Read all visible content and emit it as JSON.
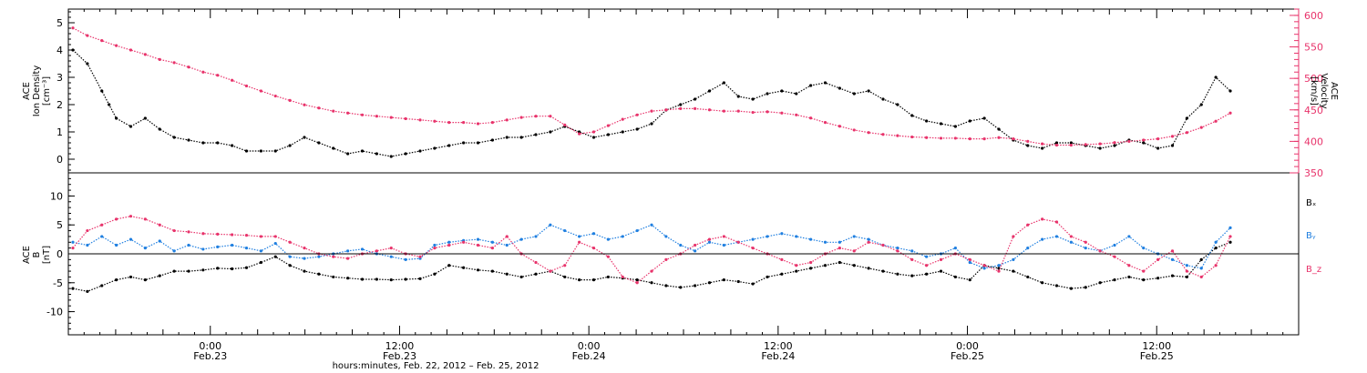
{
  "colors": {
    "black": "#000000",
    "pink": "#e8336b",
    "blue": "#1f7fe0"
  },
  "xlabel": "hours:minutes, Feb. 22, 2012 – Feb. 25, 2012",
  "chart_data": [
    {
      "panel": "density-velocity",
      "type": "scatter",
      "y_title_left": [
        "ACE",
        "Ion Density",
        "[cm⁻³]"
      ],
      "y_title_right": [
        "ACE",
        "Velocity",
        "[km/s]"
      ],
      "ylim": [
        -0.5,
        5.5
      ],
      "ylim_right": [
        350,
        610
      ],
      "y_ticks": [
        "0",
        "1",
        "2",
        "3",
        "4",
        "5"
      ],
      "y_ticks_right": [
        "350",
        "400",
        "450",
        "500",
        "550",
        "600"
      ],
      "series": [
        {
          "name": "",
          "color": "black",
          "x": [
            0.0,
            1.0,
            2.0,
            2.5,
            3.0,
            4.0,
            5.0,
            6.0,
            7.0,
            8.0,
            9.0,
            10.0,
            11.0,
            12.0,
            13.0,
            14.0,
            15.0,
            16.0,
            17.0,
            18.0,
            19.0,
            20.0,
            21.0,
            22.0,
            23.0,
            24.0,
            25.0,
            26.0,
            27.0,
            28.0,
            29.0,
            30.0,
            31.0,
            32.0,
            33.0,
            34.0,
            35.0,
            36.0,
            37.0,
            38.0,
            39.0,
            40.0,
            41.0,
            42.0,
            43.0,
            44.0,
            45.0,
            46.0,
            47.0,
            48.0,
            49.0,
            50.0,
            51.0,
            52.0,
            53.0,
            54.0,
            55.0,
            56.0,
            57.0,
            58.0,
            59.0,
            60.0,
            61.0,
            62.0,
            63.0,
            64.0,
            65.0,
            66.0,
            67.0,
            68.0,
            69.0,
            70.0,
            71.0,
            72.0,
            73.0,
            74.0,
            75.0,
            76.0,
            77.0,
            78.0,
            79.0,
            80.0
          ],
          "y": [
            4.0,
            3.5,
            2.5,
            2.0,
            1.5,
            1.2,
            1.5,
            1.1,
            0.8,
            0.7,
            0.6,
            0.6,
            0.5,
            0.3,
            0.3,
            0.3,
            0.5,
            0.8,
            0.6,
            0.4,
            0.2,
            0.3,
            0.2,
            0.1,
            0.2,
            0.3,
            0.4,
            0.5,
            0.6,
            0.6,
            0.7,
            0.8,
            0.8,
            0.9,
            1.0,
            1.2,
            1.0,
            0.8,
            0.9,
            1.0,
            1.1,
            1.3,
            1.8,
            2.0,
            2.2,
            2.5,
            2.8,
            2.3,
            2.2,
            2.4,
            2.5,
            2.4,
            2.7,
            2.8,
            2.6,
            2.4,
            2.5,
            2.2,
            2.0,
            1.6,
            1.4,
            1.3,
            1.2,
            1.4,
            1.5,
            1.1,
            0.7,
            0.5,
            0.4,
            0.6,
            0.6,
            0.5,
            0.4,
            0.5,
            0.7,
            0.6,
            0.4,
            0.5,
            1.5,
            2.0,
            3.0,
            2.5
          ]
        }
      ],
      "series_right": [
        {
          "name": "",
          "color": "pink",
          "x": [
            0.0,
            1.0,
            2.0,
            3.0,
            4.0,
            5.0,
            6.0,
            7.0,
            8.0,
            9.0,
            10.0,
            11.0,
            12.0,
            13.0,
            14.0,
            15.0,
            16.0,
            17.0,
            18.0,
            19.0,
            20.0,
            21.0,
            22.0,
            23.0,
            24.0,
            25.0,
            26.0,
            27.0,
            28.0,
            29.0,
            30.0,
            31.0,
            32.0,
            33.0,
            34.0,
            35.0,
            36.0,
            37.0,
            38.0,
            39.0,
            40.0,
            41.0,
            42.0,
            43.0,
            44.0,
            45.0,
            46.0,
            47.0,
            48.0,
            49.0,
            50.0,
            51.0,
            52.0,
            53.0,
            54.0,
            55.0,
            56.0,
            57.0,
            58.0,
            59.0,
            60.0,
            61.0,
            62.0,
            63.0,
            64.0,
            65.0,
            66.0,
            67.0,
            68.0,
            69.0,
            70.0,
            71.0,
            72.0,
            73.0,
            74.0,
            75.0,
            76.0,
            77.0,
            78.0,
            79.0,
            80.0
          ],
          "y": [
            580,
            568,
            560,
            552,
            545,
            538,
            530,
            525,
            518,
            510,
            505,
            497,
            488,
            480,
            472,
            465,
            458,
            453,
            448,
            445,
            442,
            440,
            438,
            436,
            434,
            432,
            430,
            430,
            428,
            430,
            434,
            438,
            440,
            440,
            426,
            412,
            415,
            425,
            435,
            442,
            448,
            450,
            452,
            452,
            450,
            448,
            448,
            446,
            447,
            445,
            442,
            437,
            430,
            424,
            418,
            414,
            411,
            409,
            407,
            406,
            405,
            405,
            404,
            404,
            406,
            404,
            400,
            396,
            394,
            394,
            395,
            396,
            398,
            400,
            402,
            404,
            408,
            414,
            422,
            432,
            445
          ]
        }
      ]
    },
    {
      "panel": "magnetic-field",
      "type": "scatter",
      "y_title_left": [
        "ACE",
        "B",
        "[nT]"
      ],
      "ylim": [
        -14,
        14
      ],
      "y_ticks": [
        "-10",
        "-5",
        "0",
        "5",
        "10"
      ],
      "x_ticks": [
        {
          "time": "0:00",
          "date": "Feb.23"
        },
        {
          "time": "12:00",
          "date": "Feb.23"
        },
        {
          "time": "0:00",
          "date": "Feb.24"
        },
        {
          "time": "12:00",
          "date": "Feb.24"
        },
        {
          "time": "0:00",
          "date": "Feb.25"
        },
        {
          "time": "12:00",
          "date": "Feb.25"
        }
      ],
      "xlim_hours": [
        -9,
        69
      ],
      "series": [
        {
          "name": "Bₓ",
          "color": "black",
          "x": [
            0.0,
            1.0,
            2.0,
            3.0,
            4.0,
            5.0,
            6.0,
            7.0,
            8.0,
            9.0,
            10.0,
            11.0,
            12.0,
            13.0,
            14.0,
            15.0,
            16.0,
            17.0,
            18.0,
            19.0,
            20.0,
            21.0,
            22.0,
            23.0,
            24.0,
            25.0,
            26.0,
            27.0,
            28.0,
            29.0,
            30.0,
            31.0,
            32.0,
            33.0,
            34.0,
            35.0,
            36.0,
            37.0,
            38.0,
            39.0,
            40.0,
            41.0,
            42.0,
            43.0,
            44.0,
            45.0,
            46.0,
            47.0,
            48.0,
            49.0,
            50.0,
            51.0,
            52.0,
            53.0,
            54.0,
            55.0,
            56.0,
            57.0,
            58.0,
            59.0,
            60.0,
            61.0,
            62.0,
            63.0,
            64.0,
            65.0,
            66.0,
            67.0,
            68.0,
            69.0,
            70.0,
            71.0,
            72.0,
            73.0,
            74.0,
            75.0,
            76.0,
            77.0,
            78.0,
            79.0,
            80.0
          ],
          "y": [
            -6,
            -6.5,
            -5.5,
            -4.5,
            -4,
            -4.5,
            -3.8,
            -3,
            -3,
            -2.8,
            -2.5,
            -2.6,
            -2.4,
            -1.5,
            -0.5,
            -2,
            -3,
            -3.5,
            -4,
            -4.2,
            -4.4,
            -4.4,
            -4.5,
            -4.4,
            -4.3,
            -3.5,
            -2,
            -2.4,
            -2.8,
            -3,
            -3.5,
            -4,
            -3.5,
            -3,
            -4,
            -4.5,
            -4.5,
            -4,
            -4.2,
            -4.5,
            -5,
            -5.5,
            -5.8,
            -5.5,
            -5,
            -4.5,
            -4.8,
            -5.2,
            -4,
            -3.5,
            -3,
            -2.5,
            -2,
            -1.5,
            -2,
            -2.5,
            -3,
            -3.5,
            -3.8,
            -3.5,
            -3,
            -4,
            -4.5,
            -2,
            -2.5,
            -3,
            -4,
            -5,
            -5.5,
            -6,
            -5.8,
            -5,
            -4.5,
            -4,
            -4.5,
            -4.2,
            -3.8,
            -4,
            -1,
            1,
            2
          ]
        },
        {
          "name": "Bᵧ",
          "color": "blue",
          "x": [
            0.0,
            1.0,
            2.0,
            3.0,
            4.0,
            5.0,
            6.0,
            7.0,
            8.0,
            9.0,
            10.0,
            11.0,
            12.0,
            13.0,
            14.0,
            15.0,
            16.0,
            17.0,
            18.0,
            19.0,
            20.0,
            21.0,
            22.0,
            23.0,
            24.0,
            25.0,
            26.0,
            27.0,
            28.0,
            29.0,
            30.0,
            31.0,
            32.0,
            33.0,
            34.0,
            35.0,
            36.0,
            37.0,
            38.0,
            39.0,
            40.0,
            41.0,
            42.0,
            43.0,
            44.0,
            45.0,
            46.0,
            47.0,
            48.0,
            49.0,
            50.0,
            51.0,
            52.0,
            53.0,
            54.0,
            55.0,
            56.0,
            57.0,
            58.0,
            59.0,
            60.0,
            61.0,
            62.0,
            63.0,
            64.0,
            65.0,
            66.0,
            67.0,
            68.0,
            69.0,
            70.0,
            71.0,
            72.0,
            73.0,
            74.0,
            75.0,
            76.0,
            77.0,
            78.0,
            79.0,
            80.0
          ],
          "y": [
            2,
            1.5,
            3,
            1.5,
            2.5,
            1,
            2.2,
            0.5,
            1.5,
            0.8,
            1.2,
            1.5,
            1,
            0.5,
            1.8,
            -0.5,
            -0.8,
            -0.5,
            0,
            0.5,
            0.8,
            0,
            -0.5,
            -1,
            -0.8,
            1.5,
            2,
            2.3,
            2.5,
            2,
            1.5,
            2.5,
            3,
            5,
            4,
            3,
            3.5,
            2.5,
            3,
            4,
            5,
            3,
            1.5,
            0.5,
            2,
            1.5,
            2,
            2.5,
            3,
            3.5,
            3,
            2.5,
            2,
            2,
            3,
            2.5,
            1.5,
            1,
            0.5,
            -0.5,
            0,
            1,
            -1.5,
            -2.5,
            -2,
            -1,
            1,
            2.5,
            3,
            2,
            1,
            0.5,
            1.5,
            3,
            1,
            0,
            -1,
            -2,
            -2.5,
            2,
            4.5
          ]
        },
        {
          "name": "B_z",
          "color": "pink",
          "x": [
            0.0,
            1.0,
            2.0,
            3.0,
            4.0,
            5.0,
            6.0,
            7.0,
            8.0,
            9.0,
            10.0,
            11.0,
            12.0,
            13.0,
            14.0,
            15.0,
            16.0,
            17.0,
            18.0,
            19.0,
            20.0,
            21.0,
            22.0,
            23.0,
            24.0,
            25.0,
            26.0,
            27.0,
            28.0,
            29.0,
            30.0,
            31.0,
            32.0,
            33.0,
            34.0,
            35.0,
            36.0,
            37.0,
            38.0,
            39.0,
            40.0,
            41.0,
            42.0,
            43.0,
            44.0,
            45.0,
            46.0,
            47.0,
            48.0,
            49.0,
            50.0,
            51.0,
            52.0,
            53.0,
            54.0,
            55.0,
            56.0,
            57.0,
            58.0,
            59.0,
            60.0,
            61.0,
            62.0,
            63.0,
            64.0,
            65.0,
            66.0,
            67.0,
            68.0,
            69.0,
            70.0,
            71.0,
            72.0,
            73.0,
            74.0,
            75.0,
            76.0,
            77.0,
            78.0,
            79.0,
            80.0
          ],
          "y": [
            1,
            4,
            5,
            6,
            6.5,
            6,
            5,
            4,
            3.8,
            3.5,
            3.4,
            3.3,
            3.2,
            3,
            3,
            2,
            1,
            0,
            -0.5,
            -0.8,
            0,
            0.5,
            1,
            0,
            -0.5,
            1,
            1.5,
            2,
            1.5,
            1,
            3,
            0,
            -1.5,
            -3,
            -2,
            2,
            1,
            -0.5,
            -4,
            -5,
            -3,
            -1,
            0,
            1.5,
            2.5,
            3,
            2,
            1,
            0,
            -1,
            -2,
            -1.5,
            0,
            1,
            0.5,
            2,
            1.5,
            0.5,
            -1,
            -2,
            -1,
            0,
            -1,
            -2,
            -3,
            3,
            5,
            6,
            5.5,
            3,
            2,
            0.5,
            -0.5,
            -2,
            -3,
            -1,
            0.5,
            -3,
            -4,
            -2,
            3
          ]
        }
      ]
    }
  ]
}
